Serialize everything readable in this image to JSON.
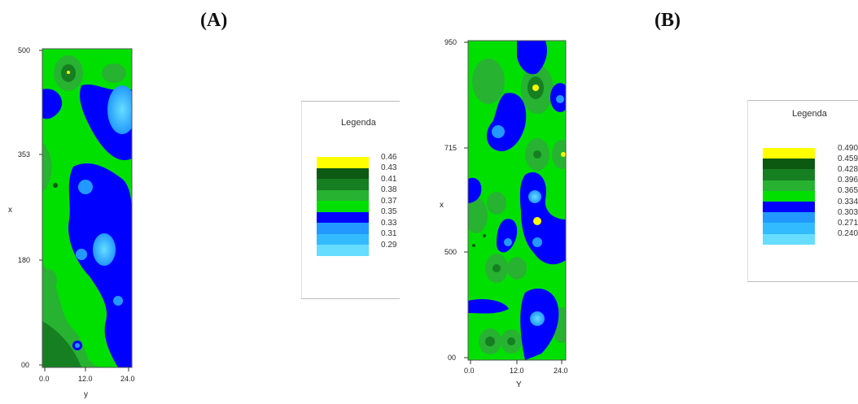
{
  "panels": {
    "a": {
      "label": "(A)"
    },
    "b": {
      "label": "(B)"
    }
  },
  "colors": {
    "yellow": "#ffff00",
    "dark_green": "#0c5a12",
    "green_mid": "#167f22",
    "green": "#27b232",
    "bright_green": "#00e000",
    "blue": "#0000ff",
    "sky_blue": "#2299ff",
    "light_blue": "#33bbff",
    "cyan": "#66ddff"
  },
  "chart_data": [
    {
      "type": "heatmap",
      "panel": "(A)",
      "xlabel": "y",
      "ylabel": "x",
      "y_ticks": [
        "500",
        "353",
        "180",
        "00"
      ],
      "x_ticks": [
        "0.0",
        "12.0",
        "24.0"
      ],
      "legend": {
        "title": "Legenda",
        "entries": [
          {
            "value": "0.46",
            "color": "#ffff00"
          },
          {
            "value": "0.43",
            "color": "#0c5a12"
          },
          {
            "value": "0.41",
            "color": "#167f22"
          },
          {
            "value": "0.38",
            "color": "#27b232"
          },
          {
            "value": "0.37",
            "color": "#00e000"
          },
          {
            "value": "0.35",
            "color": "#0000ff"
          },
          {
            "value": "0.33",
            "color": "#2299ff"
          },
          {
            "value": "0.31",
            "color": "#33bbff"
          },
          {
            "value": "0.29",
            "color": "#66ddff"
          }
        ]
      }
    },
    {
      "type": "heatmap",
      "panel": "(B)",
      "xlabel": "Y",
      "ylabel": "x",
      "y_ticks": [
        "950",
        "715",
        "500",
        "00"
      ],
      "x_ticks": [
        "0.0",
        "12.0",
        "24.0"
      ],
      "legend": {
        "title": "Legenda",
        "entries": [
          {
            "value": "0.490",
            "color": "#ffff00"
          },
          {
            "value": "0.459",
            "color": "#0c5a12"
          },
          {
            "value": "0.428",
            "color": "#167f22"
          },
          {
            "value": "0.396",
            "color": "#27b232"
          },
          {
            "value": "0.365",
            "color": "#00e000"
          },
          {
            "value": "0.334",
            "color": "#0000ff"
          },
          {
            "value": "0.303",
            "color": "#2299ff"
          },
          {
            "value": "0.271",
            "color": "#33bbff"
          },
          {
            "value": "0.240",
            "color": "#66ddff"
          }
        ]
      }
    }
  ]
}
